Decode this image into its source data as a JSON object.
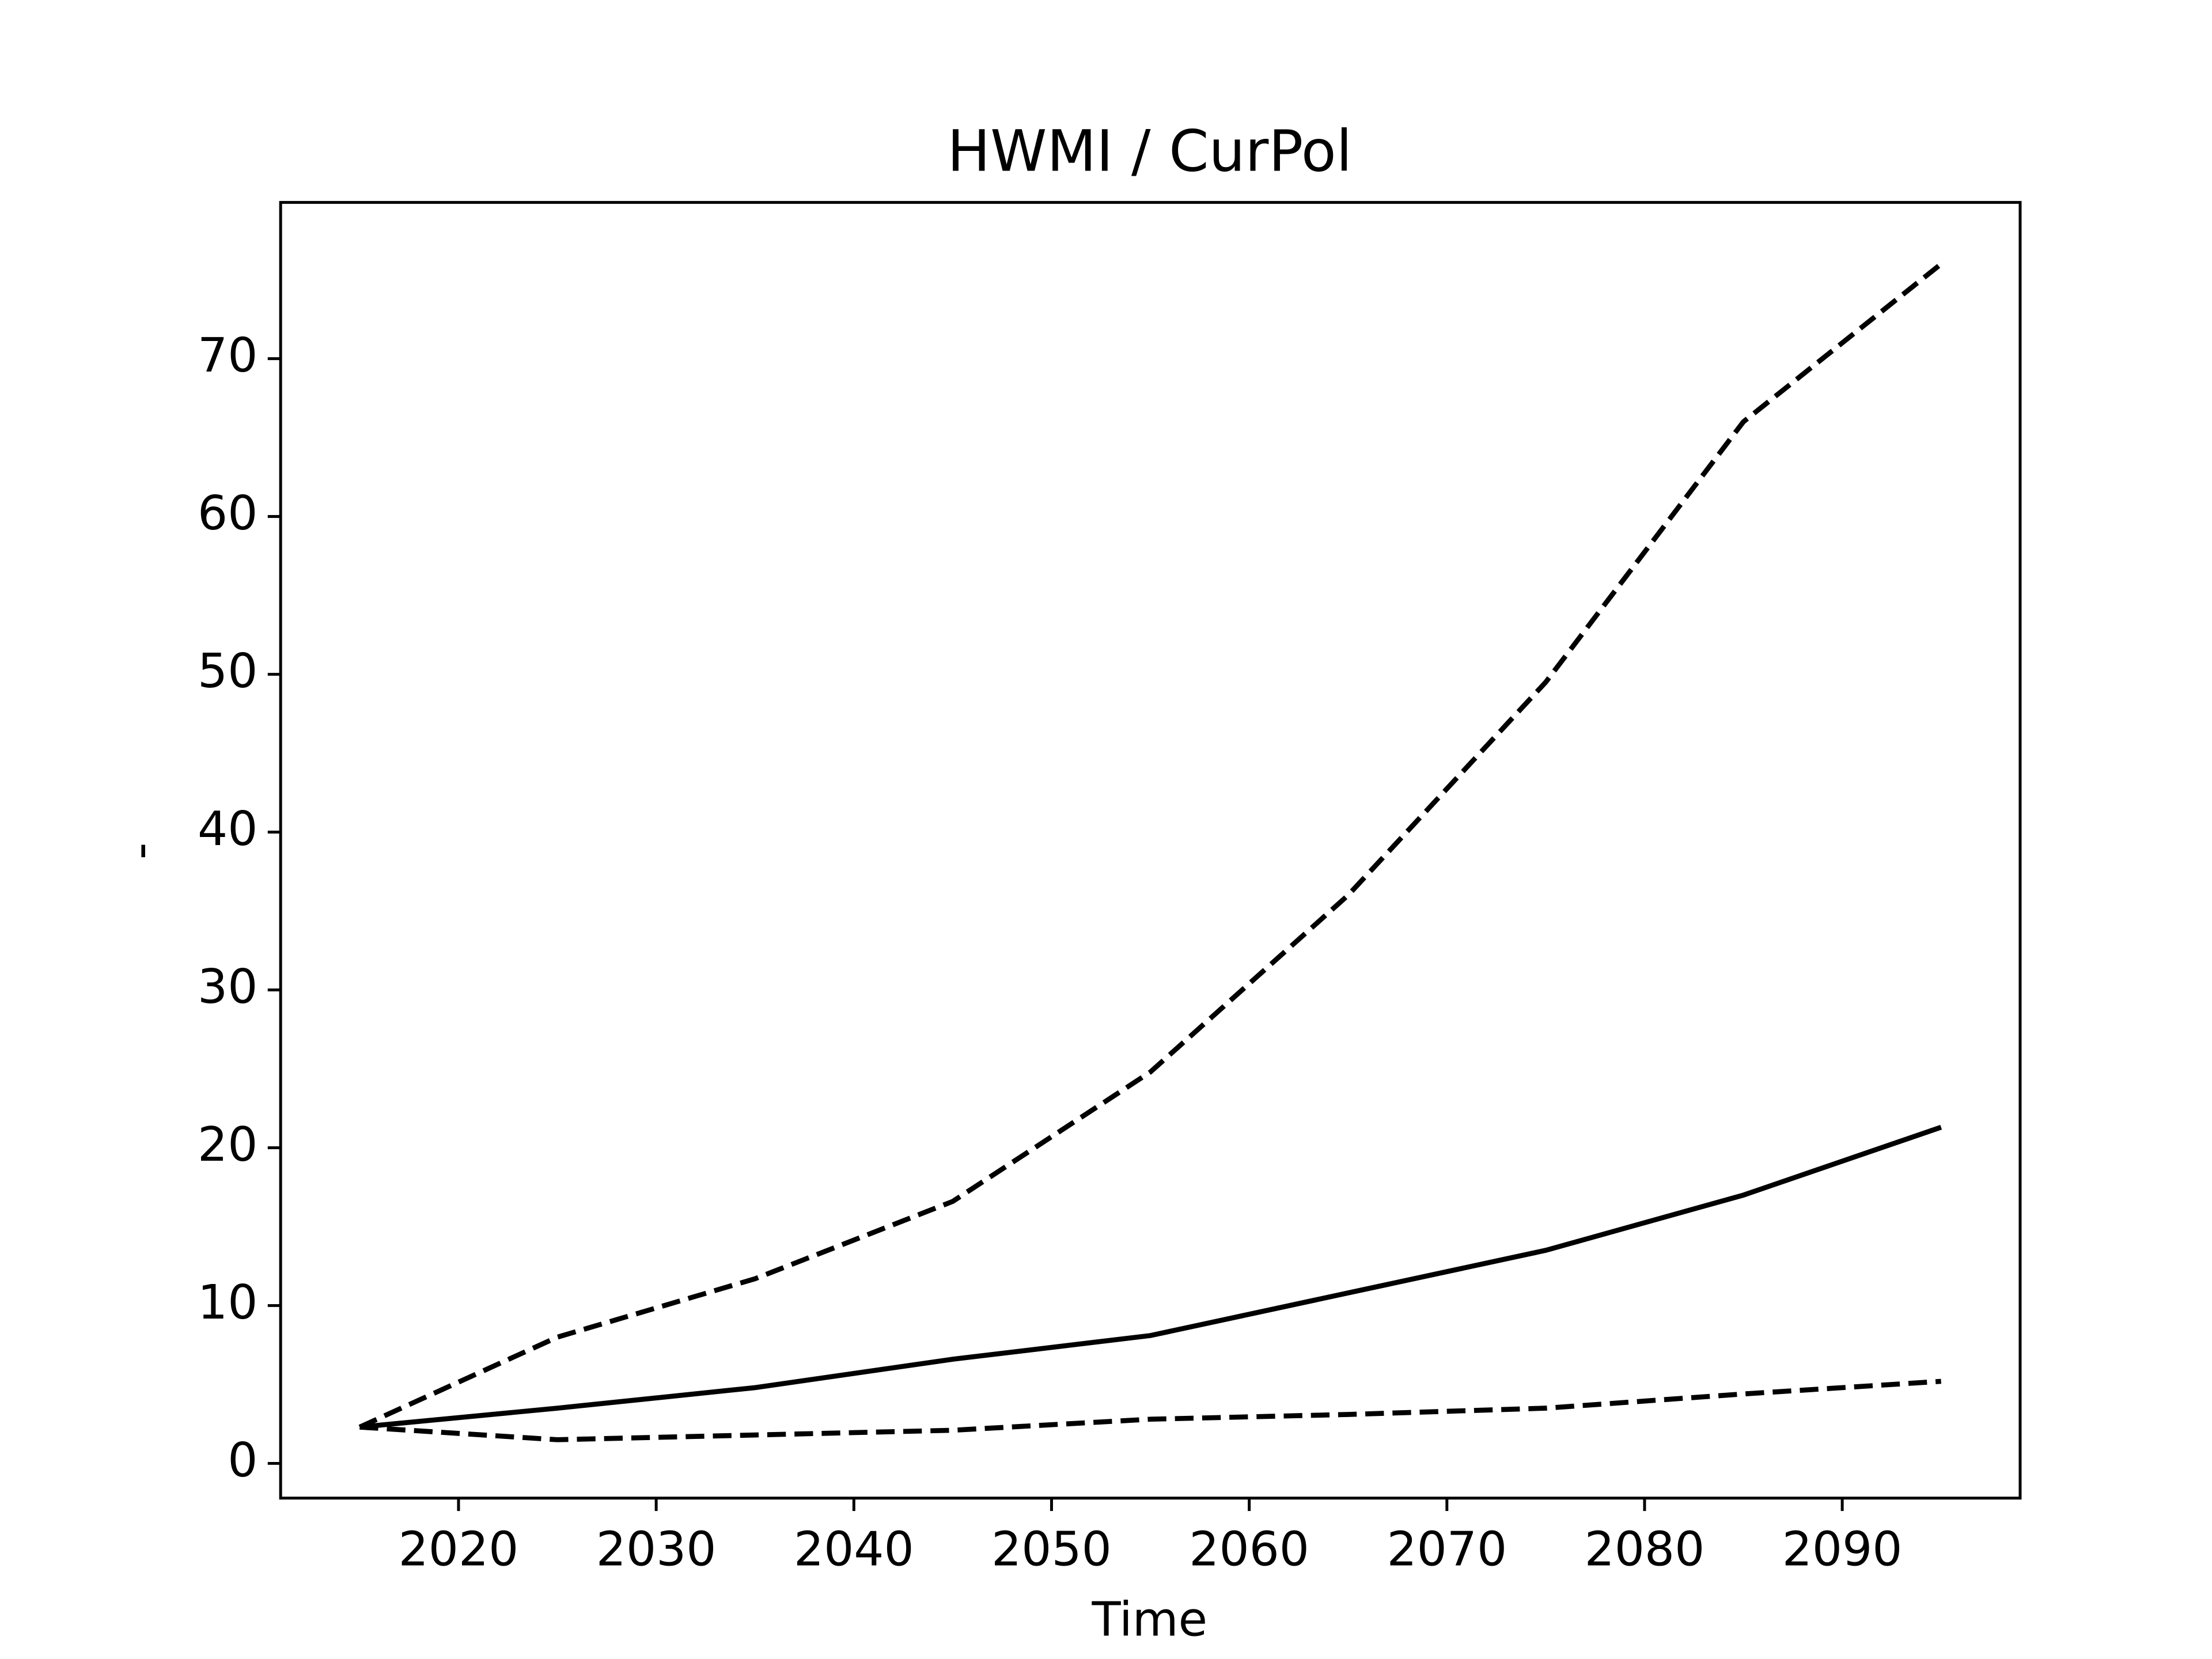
{
  "chart_data": {
    "type": "line",
    "title": "HWMI / CurPol",
    "x_label": "Time",
    "y_label": "-",
    "x": [
      2015,
      2025,
      2035,
      2045,
      2055,
      2065,
      2075,
      2085,
      2095
    ],
    "series": [
      {
        "color": "#000000",
        "style": "solid",
        "values": [
          2.3,
          3.5,
          4.8,
          6.6,
          8.1,
          10.8,
          13.5,
          17.0,
          21.3
        ]
      },
      {
        "color": "#000000",
        "style": "dashed",
        "values": [
          2.3,
          8.0,
          11.7,
          16.6,
          24.8,
          36.0,
          49.5,
          66.0,
          76.0
        ]
      },
      {
        "color": "#000000",
        "style": "dashed",
        "values": [
          2.3,
          1.5,
          1.8,
          2.1,
          2.8,
          3.1,
          3.5,
          4.4,
          5.2
        ]
      }
    ],
    "xlim": [
      2011,
      2099
    ],
    "ylim": [
      -2.2,
      79.9
    ],
    "xticks": [
      2020,
      2030,
      2040,
      2050,
      2060,
      2070,
      2080,
      2090
    ],
    "yticks": [
      0,
      10,
      20,
      30,
      40,
      50,
      60,
      70
    ],
    "grid": false
  }
}
